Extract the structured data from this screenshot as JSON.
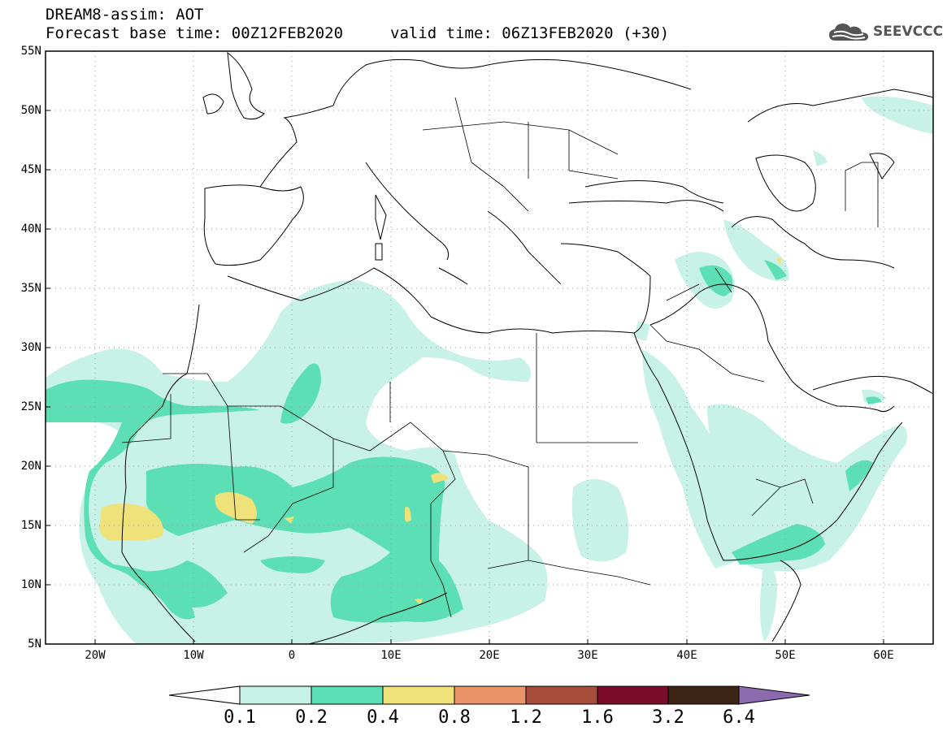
{
  "header": {
    "model_line": "DREAM8-assim: AOT",
    "base_time": "Forecast base time: 00Z12FEB2020",
    "valid_time": "valid time: 06Z13FEB2020 (+30)",
    "logo_text": "SEEVCCC",
    "logo_icon": "cloud-icon"
  },
  "map": {
    "lat_labels": [
      "55N",
      "50N",
      "45N",
      "40N",
      "35N",
      "30N",
      "25N",
      "20N",
      "15N",
      "10N",
      "5N"
    ],
    "lon_labels": [
      "20W",
      "10W",
      "0",
      "10E",
      "20E",
      "30E",
      "40E",
      "50E",
      "60E"
    ],
    "lat_range": [
      5,
      55
    ],
    "lon_range": [
      -25,
      65
    ],
    "grid": "dotted"
  },
  "colorbar": {
    "levels": [
      "0.1",
      "0.2",
      "0.4",
      "0.8",
      "1.2",
      "1.6",
      "3.2",
      "6.4"
    ],
    "colors": [
      "#ffffff",
      "#c8f2e8",
      "#5ddfb6",
      "#f0e27a",
      "#e9946a",
      "#a64d3c",
      "#7a0b2a",
      "#3c2416",
      "#8b6aae"
    ]
  }
}
